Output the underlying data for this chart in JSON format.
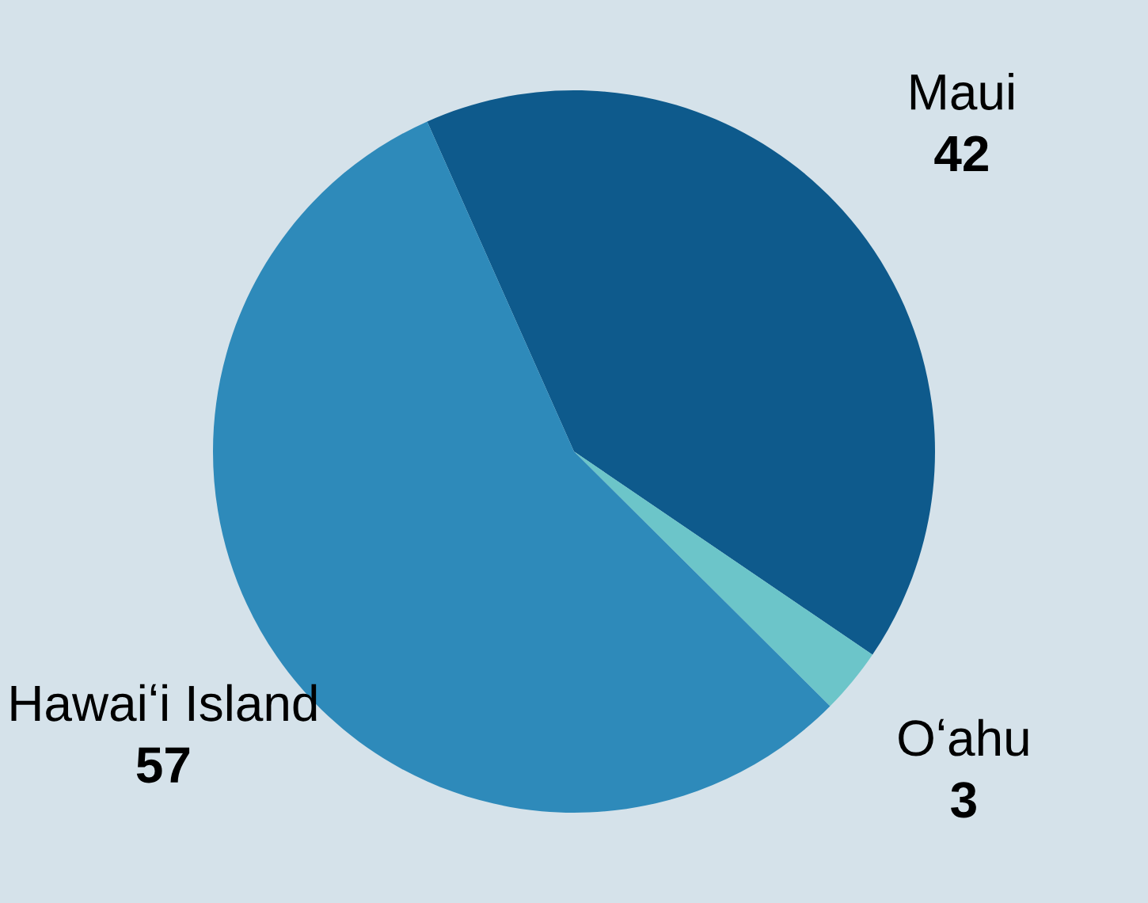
{
  "chart_data": {
    "type": "pie",
    "categories": [
      "Maui",
      "Oʻahu",
      "Hawaiʻi Island"
    ],
    "values": [
      42,
      3,
      57
    ],
    "colors": [
      "#0e5a8c",
      "#6cc5c9",
      "#2e8aba"
    ],
    "data_labels": true
  }
}
